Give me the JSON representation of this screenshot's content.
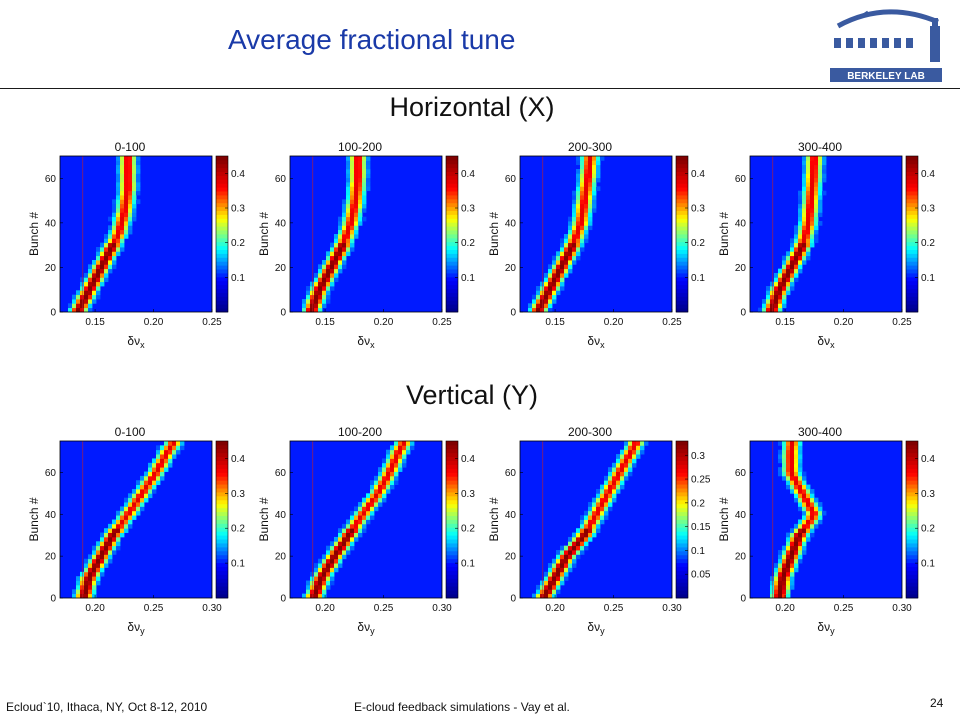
{
  "slide": {
    "title": "Average fractional tune",
    "footer_left": "Ecloud`10, Ithaca, NY, Oct 8-12, 2010",
    "footer_center": "E-cloud feedback simulations - Vay et al.",
    "page_number": "24",
    "logo_text": "BERKELEY LAB"
  },
  "sections": {
    "horizontal_title": "Horizontal (X)",
    "vertical_title": "Vertical (Y)"
  },
  "colors": {
    "title": "#1a3aa8",
    "logo": "#3a5aa0",
    "colormap": [
      "#00008f",
      "#0000ff",
      "#00ffff",
      "#ffff00",
      "#ff0000",
      "#800000"
    ]
  },
  "chart_data": [
    {
      "type": "heatmap",
      "title": "0-100",
      "row": "horizontal",
      "xlabel": "δν",
      "xsub": "x",
      "ylabel": "Bunch #",
      "xlim": [
        0.12,
        0.25
      ],
      "ylim": [
        0,
        70
      ],
      "xticks": [
        "0.15",
        "0.20",
        "0.25"
      ],
      "xtick_values": [
        0.15,
        0.2,
        0.25
      ],
      "yticks": [
        "0",
        "20",
        "40",
        "60"
      ],
      "ytick_values": [
        0,
        20,
        40,
        60
      ],
      "cbar_ticks": [
        "0.4",
        "0.3",
        "0.2",
        "0.1"
      ],
      "cbar_tick_values": [
        0.4,
        0.3,
        0.2,
        0.1
      ],
      "cbar_range": [
        0,
        0.45
      ],
      "ridge": [
        [
          0,
          0.135
        ],
        [
          5,
          0.14
        ],
        [
          10,
          0.145
        ],
        [
          20,
          0.155
        ],
        [
          30,
          0.165
        ],
        [
          35,
          0.17
        ],
        [
          45,
          0.175
        ],
        [
          55,
          0.178
        ],
        [
          70,
          0.178
        ]
      ]
    },
    {
      "type": "heatmap",
      "title": "100-200",
      "row": "horizontal",
      "xlabel": "δν",
      "xsub": "x",
      "ylabel": "Bunch #",
      "xlim": [
        0.12,
        0.25
      ],
      "ylim": [
        0,
        70
      ],
      "xticks": [
        "0.15",
        "0.20",
        "0.25"
      ],
      "xtick_values": [
        0.15,
        0.2,
        0.25
      ],
      "yticks": [
        "0",
        "20",
        "40",
        "60"
      ],
      "ytick_values": [
        0,
        20,
        40,
        60
      ],
      "cbar_ticks": [
        "0.4",
        "0.3",
        "0.2",
        "0.1"
      ],
      "cbar_tick_values": [
        0.4,
        0.3,
        0.2,
        0.1
      ],
      "cbar_range": [
        0,
        0.45
      ],
      "ridge": [
        [
          0,
          0.138
        ],
        [
          10,
          0.145
        ],
        [
          20,
          0.155
        ],
        [
          30,
          0.165
        ],
        [
          40,
          0.172
        ],
        [
          50,
          0.176
        ],
        [
          60,
          0.178
        ],
        [
          70,
          0.178
        ]
      ]
    },
    {
      "type": "heatmap",
      "title": "200-300",
      "row": "horizontal",
      "xlabel": "δν",
      "xsub": "x",
      "ylabel": "Bunch #",
      "xlim": [
        0.12,
        0.25
      ],
      "ylim": [
        0,
        70
      ],
      "xticks": [
        "0.15",
        "0.20",
        "0.25"
      ],
      "xtick_values": [
        0.15,
        0.2,
        0.25
      ],
      "yticks": [
        "0",
        "20",
        "40",
        "60"
      ],
      "ytick_values": [
        0,
        20,
        40,
        60
      ],
      "cbar_ticks": [
        "0.4",
        "0.3",
        "0.2",
        "0.1"
      ],
      "cbar_tick_values": [
        0.4,
        0.3,
        0.2,
        0.1
      ],
      "cbar_range": [
        0,
        0.45
      ],
      "ridge": [
        [
          0,
          0.135
        ],
        [
          10,
          0.145
        ],
        [
          20,
          0.155
        ],
        [
          30,
          0.165
        ],
        [
          40,
          0.172
        ],
        [
          50,
          0.175
        ],
        [
          60,
          0.178
        ],
        [
          70,
          0.18
        ]
      ]
    },
    {
      "type": "heatmap",
      "title": "300-400",
      "row": "horizontal",
      "xlabel": "δν",
      "xsub": "x",
      "ylabel": "Bunch #",
      "xlim": [
        0.12,
        0.25
      ],
      "ylim": [
        0,
        70
      ],
      "xticks": [
        "0.15",
        "0.20",
        "0.25"
      ],
      "xtick_values": [
        0.15,
        0.2,
        0.25
      ],
      "yticks": [
        "0",
        "20",
        "40",
        "60"
      ],
      "ytick_values": [
        0,
        20,
        40,
        60
      ],
      "cbar_ticks": [
        "0.4",
        "0.3",
        "0.2",
        "0.1"
      ],
      "cbar_tick_values": [
        0.4,
        0.3,
        0.2,
        0.1
      ],
      "cbar_range": [
        0,
        0.45
      ],
      "ridge": [
        [
          0,
          0.138
        ],
        [
          10,
          0.145
        ],
        [
          20,
          0.155
        ],
        [
          30,
          0.165
        ],
        [
          40,
          0.17
        ],
        [
          50,
          0.172
        ],
        [
          60,
          0.174
        ],
        [
          70,
          0.175
        ]
      ]
    },
    {
      "type": "heatmap",
      "title": "0-100",
      "row": "vertical",
      "xlabel": "δν",
      "xsub": "y",
      "ylabel": "Bunch #",
      "xlim": [
        0.17,
        0.3
      ],
      "ylim": [
        0,
        75
      ],
      "xticks": [
        "0.20",
        "0.25",
        "0.30"
      ],
      "xtick_values": [
        0.2,
        0.25,
        0.3
      ],
      "yticks": [
        "0",
        "20",
        "40",
        "60"
      ],
      "ytick_values": [
        0,
        20,
        40,
        60
      ],
      "cbar_ticks": [
        "0.4",
        "0.3",
        "0.2",
        "0.1"
      ],
      "cbar_tick_values": [
        0.4,
        0.3,
        0.2,
        0.1
      ],
      "cbar_range": [
        0,
        0.45
      ],
      "ridge": [
        [
          0,
          0.19
        ],
        [
          10,
          0.195
        ],
        [
          20,
          0.205
        ],
        [
          30,
          0.215
        ],
        [
          40,
          0.228
        ],
        [
          50,
          0.24
        ],
        [
          60,
          0.252
        ],
        [
          70,
          0.262
        ],
        [
          75,
          0.268
        ]
      ]
    },
    {
      "type": "heatmap",
      "title": "100-200",
      "row": "vertical",
      "xlabel": "δν",
      "xsub": "y",
      "ylabel": "Bunch #",
      "xlim": [
        0.17,
        0.3
      ],
      "ylim": [
        0,
        75
      ],
      "xticks": [
        "0.20",
        "0.25",
        "0.30"
      ],
      "xtick_values": [
        0.2,
        0.25,
        0.3
      ],
      "yticks": [
        "0",
        "20",
        "40",
        "60"
      ],
      "ytick_values": [
        0,
        20,
        40,
        60
      ],
      "cbar_ticks": [
        "0.4",
        "0.3",
        "0.2",
        "0.1"
      ],
      "cbar_tick_values": [
        0.4,
        0.3,
        0.2,
        0.1
      ],
      "cbar_range": [
        0,
        0.45
      ],
      "ridge": [
        [
          0,
          0.19
        ],
        [
          10,
          0.197
        ],
        [
          20,
          0.208
        ],
        [
          30,
          0.22
        ],
        [
          40,
          0.232
        ],
        [
          50,
          0.245
        ],
        [
          60,
          0.255
        ],
        [
          70,
          0.263
        ],
        [
          75,
          0.268
        ]
      ]
    },
    {
      "type": "heatmap",
      "title": "200-300",
      "row": "vertical",
      "xlabel": "δν",
      "xsub": "y",
      "ylabel": "Bunch #",
      "xlim": [
        0.17,
        0.3
      ],
      "ylim": [
        0,
        75
      ],
      "xticks": [
        "0.20",
        "0.25",
        "0.30"
      ],
      "xtick_values": [
        0.2,
        0.25,
        0.3
      ],
      "yticks": [
        "0",
        "20",
        "40",
        "60"
      ],
      "ytick_values": [
        0,
        20,
        40,
        60
      ],
      "cbar_ticks": [
        "0.3",
        "0.25",
        "0.2",
        "0.15",
        "0.1",
        "0.05"
      ],
      "cbar_tick_values": [
        0.3,
        0.25,
        0.2,
        0.15,
        0.1,
        0.05
      ],
      "cbar_range": [
        0,
        0.33
      ],
      "ridge": [
        [
          0,
          0.19
        ],
        [
          10,
          0.2
        ],
        [
          20,
          0.21
        ],
        [
          30,
          0.225
        ],
        [
          40,
          0.235
        ],
        [
          50,
          0.245
        ],
        [
          60,
          0.255
        ],
        [
          70,
          0.265
        ],
        [
          75,
          0.27
        ]
      ]
    },
    {
      "type": "heatmap",
      "title": "300-400",
      "row": "vertical",
      "xlabel": "δν",
      "xsub": "y",
      "ylabel": "Bunch #",
      "xlim": [
        0.17,
        0.3
      ],
      "ylim": [
        0,
        75
      ],
      "xticks": [
        "0.20",
        "0.25",
        "0.30"
      ],
      "xtick_values": [
        0.2,
        0.25,
        0.3
      ],
      "yticks": [
        "0",
        "20",
        "40",
        "60"
      ],
      "ytick_values": [
        0,
        20,
        40,
        60
      ],
      "cbar_ticks": [
        "0.4",
        "0.3",
        "0.2",
        "0.1"
      ],
      "cbar_tick_values": [
        0.4,
        0.3,
        0.2,
        0.1
      ],
      "cbar_range": [
        0,
        0.45
      ],
      "ridge": [
        [
          0,
          0.195
        ],
        [
          10,
          0.198
        ],
        [
          20,
          0.205
        ],
        [
          30,
          0.212
        ],
        [
          40,
          0.225
        ],
        [
          50,
          0.215
        ],
        [
          60,
          0.205
        ],
        [
          70,
          0.205
        ],
        [
          75,
          0.206
        ]
      ]
    }
  ]
}
